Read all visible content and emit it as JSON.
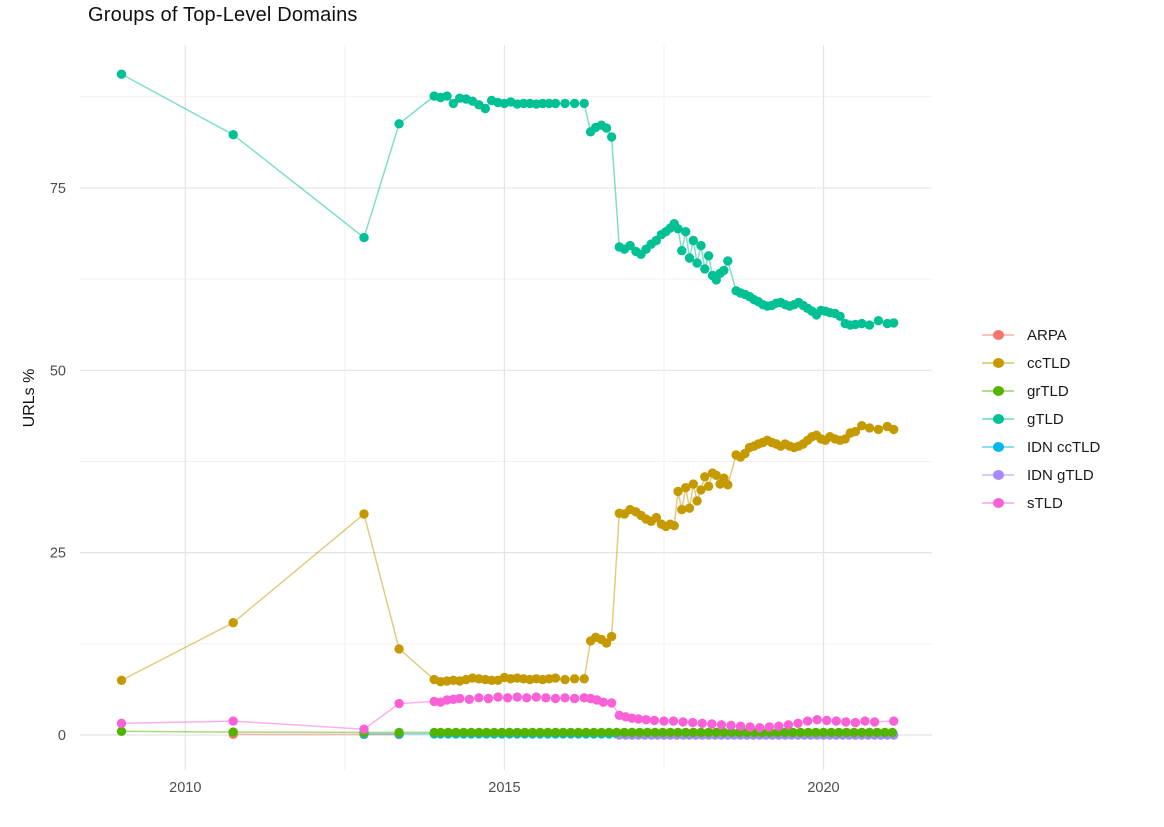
{
  "chart_data": {
    "type": "line",
    "title": "Groups of Top-Level Domains",
    "xlabel": "",
    "ylabel": "URLs %",
    "grid": true,
    "legend_position": "right",
    "axes": {
      "x": {
        "lim": [
          2008.35,
          2021.7
        ],
        "major": [
          2010,
          2015,
          2020
        ],
        "minor": [
          2012.5,
          2017.5
        ],
        "labels": [
          "2010",
          "2015",
          "2020"
        ]
      },
      "y": {
        "lim": [
          -4.8,
          94.6
        ],
        "major": [
          0,
          25,
          50,
          75
        ],
        "minor": [
          12.5,
          37.5,
          62.5,
          87.5
        ],
        "labels": [
          "0",
          "25",
          "50",
          "75"
        ]
      }
    },
    "colors": {
      "grid_major": "#e4e4e4",
      "grid_minor": "#f1f1f1",
      "tick_text": "#4d4d4d"
    },
    "draw_order": [
      "ARPA",
      "IDN ccTLD",
      "IDN gTLD",
      "grTLD",
      "ccTLD",
      "gTLD",
      "sTLD"
    ],
    "series": [
      {
        "name": "ARPA",
        "color": "#F8766D",
        "points": [
          [
            2010.75,
            0.1
          ],
          [
            2012.8,
            0.08
          ],
          [
            2013.35,
            0.05
          ]
        ]
      },
      {
        "name": "ccTLD",
        "color": "#C49A00",
        "points": [
          [
            2009.0,
            7.5
          ],
          [
            2010.75,
            15.4
          ],
          [
            2012.8,
            30.3
          ],
          [
            2013.35,
            11.8
          ],
          [
            2013.9,
            7.6
          ],
          [
            2014.0,
            7.3
          ],
          [
            2014.1,
            7.4
          ],
          [
            2014.2,
            7.5
          ],
          [
            2014.3,
            7.4
          ],
          [
            2014.4,
            7.6
          ],
          [
            2014.5,
            7.8
          ],
          [
            2014.6,
            7.7
          ],
          [
            2014.7,
            7.6
          ],
          [
            2014.8,
            7.5
          ],
          [
            2014.9,
            7.5
          ],
          [
            2015.0,
            7.9
          ],
          [
            2015.1,
            7.7
          ],
          [
            2015.2,
            7.8
          ],
          [
            2015.3,
            7.7
          ],
          [
            2015.4,
            7.6
          ],
          [
            2015.5,
            7.7
          ],
          [
            2015.6,
            7.6
          ],
          [
            2015.7,
            7.7
          ],
          [
            2015.8,
            7.8
          ],
          [
            2015.95,
            7.6
          ],
          [
            2016.1,
            7.7
          ],
          [
            2016.25,
            7.7
          ],
          [
            2016.35,
            12.9
          ],
          [
            2016.43,
            13.4
          ],
          [
            2016.52,
            13.1
          ],
          [
            2016.6,
            12.6
          ],
          [
            2016.68,
            13.5
          ],
          [
            2016.8,
            30.4
          ],
          [
            2016.88,
            30.3
          ],
          [
            2016.97,
            30.9
          ],
          [
            2017.06,
            30.6
          ],
          [
            2017.14,
            30.1
          ],
          [
            2017.22,
            29.6
          ],
          [
            2017.3,
            29.3
          ],
          [
            2017.38,
            29.8
          ],
          [
            2017.46,
            28.9
          ],
          [
            2017.53,
            28.6
          ],
          [
            2017.6,
            28.9
          ],
          [
            2017.66,
            28.7
          ],
          [
            2017.72,
            33.4
          ],
          [
            2017.78,
            30.9
          ],
          [
            2017.84,
            33.9
          ],
          [
            2017.9,
            31.1
          ],
          [
            2017.96,
            34.4
          ],
          [
            2018.02,
            32.1
          ],
          [
            2018.08,
            33.6
          ],
          [
            2018.14,
            35.4
          ],
          [
            2018.2,
            34.1
          ],
          [
            2018.26,
            35.9
          ],
          [
            2018.32,
            35.6
          ],
          [
            2018.38,
            34.4
          ],
          [
            2018.44,
            35.2
          ],
          [
            2018.5,
            34.3
          ],
          [
            2018.63,
            38.4
          ],
          [
            2018.7,
            38.1
          ],
          [
            2018.77,
            38.6
          ],
          [
            2018.84,
            39.4
          ],
          [
            2018.91,
            39.6
          ],
          [
            2018.98,
            39.9
          ],
          [
            2019.05,
            40.1
          ],
          [
            2019.12,
            40.4
          ],
          [
            2019.19,
            40.1
          ],
          [
            2019.26,
            39.9
          ],
          [
            2019.33,
            39.6
          ],
          [
            2019.4,
            39.9
          ],
          [
            2019.47,
            39.6
          ],
          [
            2019.54,
            39.4
          ],
          [
            2019.61,
            39.6
          ],
          [
            2019.68,
            39.9
          ],
          [
            2019.75,
            40.4
          ],
          [
            2019.82,
            40.9
          ],
          [
            2019.89,
            41.1
          ],
          [
            2019.96,
            40.6
          ],
          [
            2020.03,
            40.4
          ],
          [
            2020.1,
            40.9
          ],
          [
            2020.18,
            40.6
          ],
          [
            2020.26,
            40.4
          ],
          [
            2020.34,
            40.6
          ],
          [
            2020.42,
            41.4
          ],
          [
            2020.5,
            41.6
          ],
          [
            2020.6,
            42.4
          ],
          [
            2020.72,
            42.1
          ],
          [
            2020.86,
            41.9
          ],
          [
            2021.0,
            42.3
          ],
          [
            2021.1,
            41.9
          ]
        ]
      },
      {
        "name": "grTLD",
        "color": "#53B400",
        "points": [
          [
            2009.0,
            0.5
          ],
          [
            2010.75,
            0.4
          ],
          [
            2012.8,
            0.35
          ],
          [
            2013.35,
            0.35
          ],
          [
            2013.9,
            0.35
          ]
        ],
        "run": {
          "from": 2014.0,
          "to": 2021.1,
          "step": 0.12,
          "value": 0.35
        }
      },
      {
        "name": "gTLD",
        "color": "#00C094",
        "points": [
          [
            2009.0,
            90.6
          ],
          [
            2010.75,
            82.3
          ],
          [
            2012.8,
            68.2
          ],
          [
            2013.35,
            83.8
          ],
          [
            2013.9,
            87.6
          ],
          [
            2014.0,
            87.4
          ],
          [
            2014.1,
            87.6
          ],
          [
            2014.2,
            86.6
          ],
          [
            2014.3,
            87.3
          ],
          [
            2014.4,
            87.2
          ],
          [
            2014.5,
            86.9
          ],
          [
            2014.6,
            86.4
          ],
          [
            2014.7,
            85.9
          ],
          [
            2014.8,
            87.0
          ],
          [
            2014.9,
            86.7
          ],
          [
            2015.0,
            86.6
          ],
          [
            2015.1,
            86.8
          ],
          [
            2015.2,
            86.5
          ],
          [
            2015.3,
            86.6
          ],
          [
            2015.4,
            86.6
          ],
          [
            2015.5,
            86.5
          ],
          [
            2015.6,
            86.6
          ],
          [
            2015.7,
            86.6
          ],
          [
            2015.8,
            86.6
          ],
          [
            2015.95,
            86.6
          ],
          [
            2016.1,
            86.6
          ],
          [
            2016.25,
            86.6
          ],
          [
            2016.35,
            82.7
          ],
          [
            2016.43,
            83.3
          ],
          [
            2016.52,
            83.6
          ],
          [
            2016.6,
            83.2
          ],
          [
            2016.68,
            82.0
          ],
          [
            2016.8,
            66.9
          ],
          [
            2016.88,
            66.6
          ],
          [
            2016.97,
            67.1
          ],
          [
            2017.06,
            66.3
          ],
          [
            2017.14,
            65.9
          ],
          [
            2017.22,
            66.6
          ],
          [
            2017.3,
            67.3
          ],
          [
            2017.38,
            67.8
          ],
          [
            2017.46,
            68.6
          ],
          [
            2017.53,
            69.0
          ],
          [
            2017.6,
            69.5
          ],
          [
            2017.66,
            70.1
          ],
          [
            2017.72,
            69.4
          ],
          [
            2017.78,
            66.4
          ],
          [
            2017.84,
            69.0
          ],
          [
            2017.9,
            65.4
          ],
          [
            2017.96,
            67.8
          ],
          [
            2018.02,
            64.7
          ],
          [
            2018.08,
            67.1
          ],
          [
            2018.14,
            63.9
          ],
          [
            2018.2,
            65.7
          ],
          [
            2018.26,
            63.0
          ],
          [
            2018.32,
            62.4
          ],
          [
            2018.38,
            63.3
          ],
          [
            2018.44,
            63.7
          ],
          [
            2018.5,
            65.0
          ],
          [
            2018.63,
            60.9
          ],
          [
            2018.7,
            60.6
          ],
          [
            2018.77,
            60.4
          ],
          [
            2018.84,
            60.1
          ],
          [
            2018.91,
            59.7
          ],
          [
            2018.98,
            59.4
          ],
          [
            2019.05,
            59.0
          ],
          [
            2019.12,
            58.8
          ],
          [
            2019.19,
            58.9
          ],
          [
            2019.26,
            59.2
          ],
          [
            2019.33,
            59.3
          ],
          [
            2019.4,
            59.0
          ],
          [
            2019.47,
            58.8
          ],
          [
            2019.54,
            59.0
          ],
          [
            2019.61,
            59.3
          ],
          [
            2019.68,
            58.9
          ],
          [
            2019.75,
            58.5
          ],
          [
            2019.82,
            58.1
          ],
          [
            2019.89,
            57.6
          ],
          [
            2019.96,
            58.2
          ],
          [
            2020.03,
            58.1
          ],
          [
            2020.1,
            57.9
          ],
          [
            2020.18,
            57.8
          ],
          [
            2020.26,
            57.4
          ],
          [
            2020.34,
            56.4
          ],
          [
            2020.42,
            56.2
          ],
          [
            2020.5,
            56.3
          ],
          [
            2020.6,
            56.4
          ],
          [
            2020.72,
            56.2
          ],
          [
            2020.86,
            56.8
          ],
          [
            2021.0,
            56.4
          ],
          [
            2021.1,
            56.5
          ]
        ]
      },
      {
        "name": "IDN ccTLD",
        "color": "#00B6EB",
        "points": [
          [
            2012.8,
            0.15
          ],
          [
            2013.35,
            0.15
          ],
          [
            2013.9,
            0.15
          ]
        ],
        "run": {
          "from": 2014.0,
          "to": 2021.1,
          "step": 0.12,
          "value": 0.15
        }
      },
      {
        "name": "IDN gTLD",
        "color": "#A58AFF",
        "points": [],
        "run": {
          "from": 2016.8,
          "to": 2021.1,
          "step": 0.1,
          "value": 0.0
        }
      },
      {
        "name": "sTLD",
        "color": "#FB61D7",
        "points": [
          [
            2009.0,
            1.6
          ],
          [
            2010.75,
            1.9
          ],
          [
            2012.8,
            0.8
          ],
          [
            2013.35,
            4.3
          ],
          [
            2013.9,
            4.6
          ],
          [
            2014.0,
            4.5
          ],
          [
            2014.1,
            4.8
          ],
          [
            2014.2,
            4.9
          ],
          [
            2014.3,
            5.0
          ],
          [
            2014.45,
            4.9
          ],
          [
            2014.6,
            5.1
          ],
          [
            2014.75,
            5.0
          ],
          [
            2014.9,
            5.2
          ],
          [
            2015.05,
            5.1
          ],
          [
            2015.2,
            5.2
          ],
          [
            2015.35,
            5.1
          ],
          [
            2015.5,
            5.2
          ],
          [
            2015.65,
            5.1
          ],
          [
            2015.8,
            5.0
          ],
          [
            2015.95,
            5.1
          ],
          [
            2016.1,
            5.0
          ],
          [
            2016.25,
            5.1
          ],
          [
            2016.35,
            5.0
          ],
          [
            2016.45,
            4.8
          ],
          [
            2016.55,
            4.5
          ],
          [
            2016.68,
            4.4
          ],
          [
            2016.8,
            2.7
          ],
          [
            2016.9,
            2.5
          ],
          [
            2017.0,
            2.3
          ],
          [
            2017.1,
            2.2
          ],
          [
            2017.22,
            2.1
          ],
          [
            2017.35,
            2.0
          ],
          [
            2017.5,
            1.9
          ],
          [
            2017.65,
            1.9
          ],
          [
            2017.8,
            1.8
          ],
          [
            2017.95,
            1.7
          ],
          [
            2018.1,
            1.6
          ],
          [
            2018.25,
            1.5
          ],
          [
            2018.4,
            1.4
          ],
          [
            2018.55,
            1.3
          ],
          [
            2018.7,
            1.2
          ],
          [
            2018.85,
            1.1
          ],
          [
            2019.0,
            1.0
          ],
          [
            2019.15,
            1.1
          ],
          [
            2019.3,
            1.2
          ],
          [
            2019.45,
            1.4
          ],
          [
            2019.6,
            1.6
          ],
          [
            2019.75,
            1.9
          ],
          [
            2019.9,
            2.1
          ],
          [
            2020.05,
            2.0
          ],
          [
            2020.2,
            1.9
          ],
          [
            2020.35,
            1.8
          ],
          [
            2020.5,
            1.7
          ],
          [
            2020.65,
            1.9
          ],
          [
            2020.8,
            1.8
          ],
          [
            2021.1,
            1.9
          ]
        ]
      }
    ],
    "legend": {
      "entries": [
        {
          "label": "ARPA",
          "color": "#F8766D"
        },
        {
          "label": "ccTLD",
          "color": "#C49A00"
        },
        {
          "label": "grTLD",
          "color": "#53B400"
        },
        {
          "label": "gTLD",
          "color": "#00C094"
        },
        {
          "label": "IDN ccTLD",
          "color": "#00B6EB"
        },
        {
          "label": "IDN gTLD",
          "color": "#A58AFF"
        },
        {
          "label": "sTLD",
          "color": "#FB61D7"
        }
      ]
    }
  }
}
